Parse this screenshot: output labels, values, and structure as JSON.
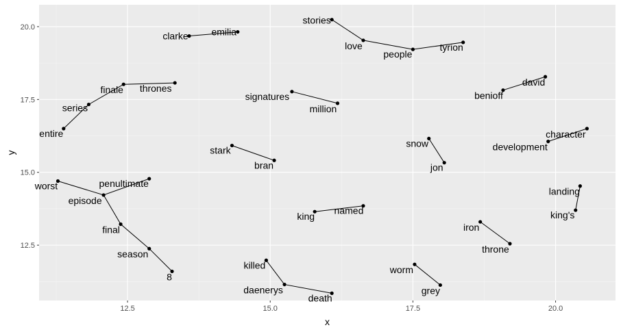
{
  "chart_data": {
    "type": "scatter",
    "title": "",
    "xlabel": "x",
    "ylabel": "y",
    "xlim": [
      10.95,
      21.05
    ],
    "ylim": [
      10.6,
      20.75
    ],
    "xticks": [
      12.5,
      15.0,
      17.5,
      20.0
    ],
    "xtick_labels": [
      "12.5",
      "15.0",
      "17.5",
      "20.0"
    ],
    "yticks": [
      12.5,
      15.0,
      17.5,
      20.0
    ],
    "ytick_labels": [
      "12.5",
      "15.0",
      "17.5",
      "20.0"
    ],
    "grid": true,
    "colors": {
      "panel": "#ebebeb",
      "grid_major": "#ffffff",
      "grid_minor": "#f5f5f5",
      "point": "#000000",
      "line": "#000000"
    },
    "points": [
      {
        "word": "clarke",
        "x": 13.58,
        "y": 19.68
      },
      {
        "word": "emilia",
        "x": 14.43,
        "y": 19.82
      },
      {
        "word": "stories",
        "x": 16.08,
        "y": 20.24
      },
      {
        "word": "love",
        "x": 16.63,
        "y": 19.53
      },
      {
        "word": "people",
        "x": 17.5,
        "y": 19.22
      },
      {
        "word": "tyrion",
        "x": 18.38,
        "y": 19.46
      },
      {
        "word": "entire",
        "x": 11.38,
        "y": 16.5
      },
      {
        "word": "series",
        "x": 11.82,
        "y": 17.33
      },
      {
        "word": "finale",
        "x": 12.43,
        "y": 18.02
      },
      {
        "word": "thrones",
        "x": 13.33,
        "y": 18.07
      },
      {
        "word": "signatures",
        "x": 15.38,
        "y": 17.77
      },
      {
        "word": "million",
        "x": 16.18,
        "y": 17.37
      },
      {
        "word": "david",
        "x": 19.82,
        "y": 18.28
      },
      {
        "word": "benioff",
        "x": 19.08,
        "y": 17.82
      },
      {
        "word": "character",
        "x": 20.55,
        "y": 16.5
      },
      {
        "word": "development",
        "x": 19.87,
        "y": 16.06
      },
      {
        "word": "snow",
        "x": 17.78,
        "y": 16.16
      },
      {
        "word": "jon",
        "x": 18.05,
        "y": 15.33
      },
      {
        "word": "stark",
        "x": 14.33,
        "y": 15.92
      },
      {
        "word": "bran",
        "x": 15.07,
        "y": 15.41
      },
      {
        "word": "worst",
        "x": 11.28,
        "y": 14.7
      },
      {
        "word": "penultimate",
        "x": 12.88,
        "y": 14.78
      },
      {
        "word": "episode",
        "x": 12.08,
        "y": 14.22
      },
      {
        "word": "final",
        "x": 12.38,
        "y": 13.22
      },
      {
        "word": "season",
        "x": 12.88,
        "y": 12.38
      },
      {
        "word": "8",
        "x": 13.28,
        "y": 11.6
      },
      {
        "word": "landing",
        "x": 20.43,
        "y": 14.53
      },
      {
        "word": "king's",
        "x": 20.35,
        "y": 13.7
      },
      {
        "word": "king",
        "x": 15.78,
        "y": 13.65
      },
      {
        "word": "named",
        "x": 16.63,
        "y": 13.85
      },
      {
        "word": "iron",
        "x": 18.68,
        "y": 13.3
      },
      {
        "word": "throne",
        "x": 19.2,
        "y": 12.55
      },
      {
        "word": "killed",
        "x": 14.93,
        "y": 11.98
      },
      {
        "word": "daenerys",
        "x": 15.25,
        "y": 11.15
      },
      {
        "word": "death",
        "x": 16.08,
        "y": 10.85
      },
      {
        "word": "worm",
        "x": 17.53,
        "y": 11.84
      },
      {
        "word": "grey",
        "x": 17.98,
        "y": 11.13
      }
    ],
    "paths": [
      [
        "clarke",
        "emilia"
      ],
      [
        "stories",
        "love",
        "people",
        "tyrion"
      ],
      [
        "entire",
        "series",
        "finale",
        "thrones"
      ],
      [
        "signatures",
        "million"
      ],
      [
        "benioff",
        "david"
      ],
      [
        "development",
        "character"
      ],
      [
        "snow",
        "jon"
      ],
      [
        "stark",
        "bran"
      ],
      [
        "worst",
        "episode",
        "penultimate"
      ],
      [
        "episode",
        "final",
        "season",
        "8"
      ],
      [
        "landing",
        "king's"
      ],
      [
        "king",
        "named"
      ],
      [
        "iron",
        "throne"
      ],
      [
        "killed",
        "daenerys",
        "death"
      ],
      [
        "worm",
        "grey"
      ]
    ]
  }
}
